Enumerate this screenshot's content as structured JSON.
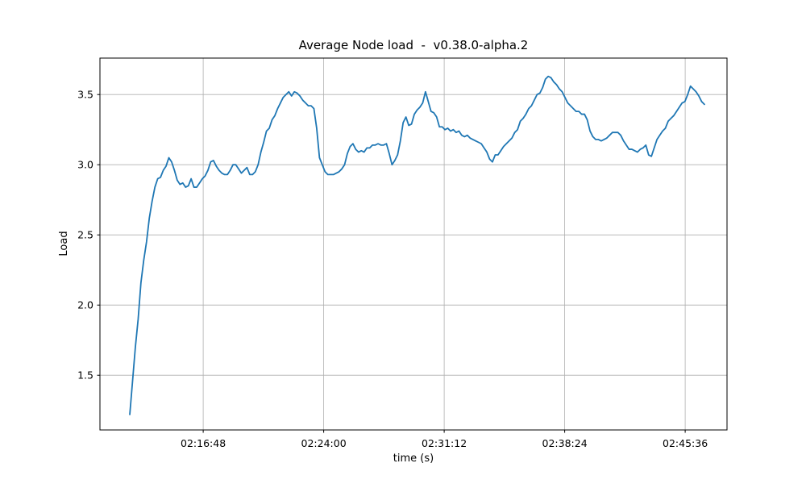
{
  "chart_data": {
    "type": "line",
    "title": "Average Node load  -  v0.38.0-alpha.2",
    "xlabel": "time (s)",
    "ylabel": "Load",
    "grid": true,
    "legend": "none",
    "line_color": "#1f77b4",
    "grid_color": "#b0b0b0",
    "spine_color": "#000000",
    "background_color": "#ffffff",
    "x_domain_seconds": [
      7838,
      10086
    ],
    "y_domain": [
      1.11,
      3.76
    ],
    "x_ticks": [
      {
        "t": 8208,
        "label": "02:16:48"
      },
      {
        "t": 8640,
        "label": "02:24:00"
      },
      {
        "t": 9072,
        "label": "02:31:12"
      },
      {
        "t": 9504,
        "label": "02:38:24"
      },
      {
        "t": 9936,
        "label": "02:45:36"
      }
    ],
    "y_ticks": [
      {
        "v": 1.5,
        "label": "1.5"
      },
      {
        "v": 2.0,
        "label": "2.0"
      },
      {
        "v": 2.5,
        "label": "2.5"
      },
      {
        "v": 3.0,
        "label": "3.0"
      },
      {
        "v": 3.5,
        "label": "3.5"
      }
    ],
    "series": [
      {
        "name": "average-node-load",
        "t0_seconds": 7945,
        "dt_seconds": 10,
        "values": [
          1.22,
          1.46,
          1.7,
          1.9,
          2.16,
          2.32,
          2.45,
          2.62,
          2.74,
          2.84,
          2.9,
          2.91,
          2.96,
          2.99,
          3.05,
          3.02,
          2.96,
          2.89,
          2.86,
          2.87,
          2.84,
          2.85,
          2.9,
          2.84,
          2.84,
          2.87,
          2.9,
          2.92,
          2.96,
          3.02,
          3.03,
          2.99,
          2.96,
          2.94,
          2.93,
          2.93,
          2.96,
          3.0,
          3.0,
          2.97,
          2.94,
          2.96,
          2.98,
          2.93,
          2.93,
          2.95,
          3.0,
          3.09,
          3.16,
          3.24,
          3.26,
          3.32,
          3.35,
          3.4,
          3.44,
          3.48,
          3.5,
          3.52,
          3.49,
          3.52,
          3.51,
          3.49,
          3.46,
          3.44,
          3.42,
          3.42,
          3.4,
          3.26,
          3.05,
          3.0,
          2.95,
          2.93,
          2.93,
          2.93,
          2.94,
          2.95,
          2.97,
          3.0,
          3.08,
          3.13,
          3.15,
          3.11,
          3.09,
          3.1,
          3.09,
          3.12,
          3.12,
          3.14,
          3.14,
          3.15,
          3.14,
          3.14,
          3.15,
          3.08,
          3.0,
          3.03,
          3.07,
          3.17,
          3.3,
          3.34,
          3.28,
          3.29,
          3.36,
          3.39,
          3.41,
          3.44,
          3.52,
          3.45,
          3.38,
          3.37,
          3.34,
          3.27,
          3.27,
          3.25,
          3.26,
          3.24,
          3.25,
          3.23,
          3.24,
          3.21,
          3.2,
          3.21,
          3.19,
          3.18,
          3.17,
          3.16,
          3.15,
          3.12,
          3.09,
          3.04,
          3.02,
          3.07,
          3.07,
          3.1,
          3.13,
          3.15,
          3.17,
          3.19,
          3.23,
          3.25,
          3.31,
          3.33,
          3.36,
          3.4,
          3.42,
          3.46,
          3.5,
          3.51,
          3.55,
          3.61,
          3.63,
          3.62,
          3.59,
          3.57,
          3.54,
          3.52,
          3.48,
          3.44,
          3.42,
          3.4,
          3.38,
          3.38,
          3.36,
          3.36,
          3.32,
          3.24,
          3.2,
          3.18,
          3.18,
          3.17,
          3.18,
          3.19,
          3.21,
          3.23,
          3.23,
          3.23,
          3.21,
          3.17,
          3.14,
          3.11,
          3.11,
          3.1,
          3.09,
          3.11,
          3.12,
          3.14,
          3.07,
          3.06,
          3.12,
          3.18,
          3.21,
          3.24,
          3.26,
          3.31,
          3.33,
          3.35,
          3.38,
          3.41,
          3.44,
          3.45,
          3.5,
          3.56,
          3.54,
          3.52,
          3.49,
          3.45,
          3.43
        ]
      }
    ]
  }
}
